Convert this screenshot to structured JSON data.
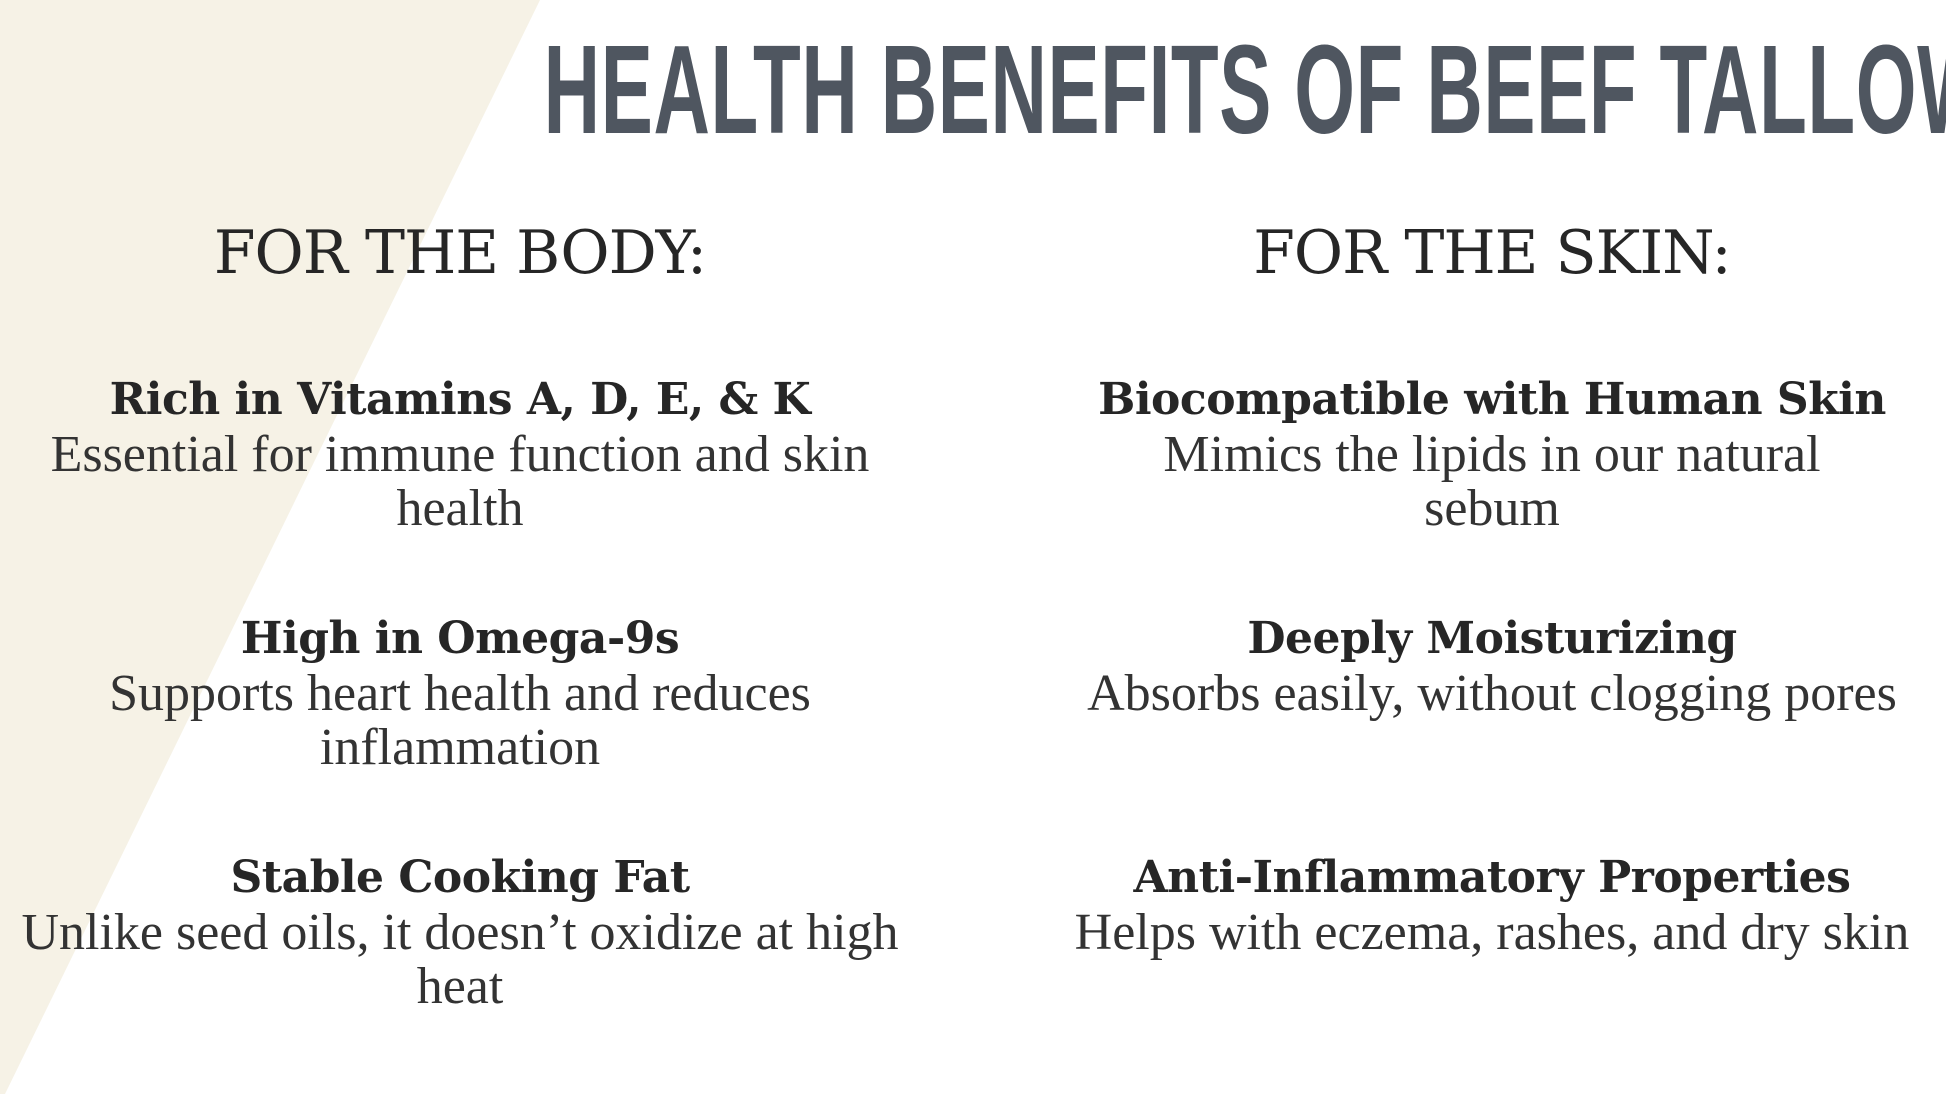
{
  "colors": {
    "background": "#ffffff",
    "accent_band": "#f6f2e6",
    "title": "#4f5660",
    "text": "#262626"
  },
  "title": "HEALTH BENEFITS OF BEEF TALLOW",
  "body": {
    "heading": "FOR THE BODY:",
    "items": [
      {
        "title": "Rich in Vitamins A, D, E, & K",
        "desc": "Essential for immune function and skin health"
      },
      {
        "title": "High in Omega-9s",
        "desc": "Supports heart health and reduces inflammation"
      },
      {
        "title": "Stable Cooking Fat",
        "desc": "Unlike seed oils, it doesn’t oxidize at high heat"
      }
    ]
  },
  "skin": {
    "heading": "FOR THE SKIN:",
    "items": [
      {
        "title": "Biocompatible with Human Skin",
        "desc": "Mimics the lipids in our natural sebum"
      },
      {
        "title": "Deeply Moisturizing",
        "desc": "Absorbs easily, without clogging pores"
      },
      {
        "title": "Anti-Inflammatory Properties",
        "desc": "Helps with eczema, rashes, and dry skin"
      }
    ]
  }
}
